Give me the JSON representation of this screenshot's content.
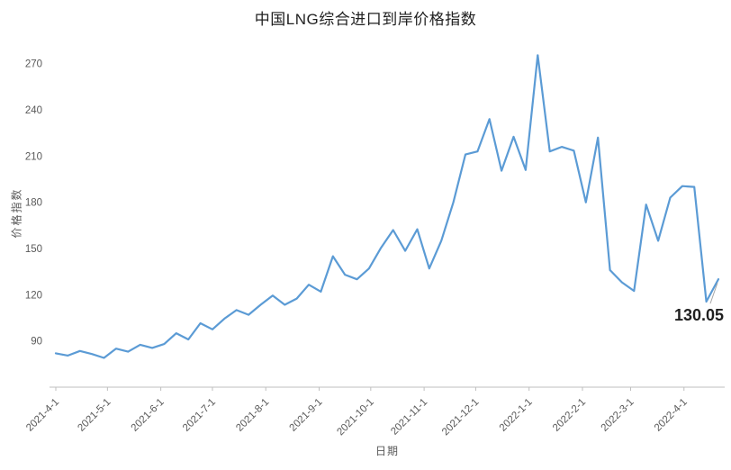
{
  "chart_data": {
    "type": "line",
    "title": "中国LNG综合进口到岸价格指数",
    "xlabel": "日期",
    "ylabel": "价格指数",
    "ylim": [
      60,
      285
    ],
    "yticks": [
      90,
      120,
      150,
      180,
      210,
      240,
      270
    ],
    "xtick_labels": [
      "2021-4-1",
      "2021-5-1",
      "2021-6-1",
      "2021-7-1",
      "2021-8-1",
      "2021-9-1",
      "2021-10-1",
      "2021-11-1",
      "2021-12-1",
      "2022-1-1",
      "2022-2-1",
      "2022-3-1",
      "2022-4-1"
    ],
    "grid": false,
    "legend": "none",
    "line_color": "#5B9BD5",
    "axis_color": "#BFBFBF",
    "tick_label_color": "#595959",
    "last_point_label": "130.05",
    "series": [
      {
        "name": "价格指数",
        "dates": [
          "2021-04-01",
          "2021-04-08",
          "2021-04-15",
          "2021-04-22",
          "2021-04-29",
          "2021-05-06",
          "2021-05-13",
          "2021-05-20",
          "2021-05-27",
          "2021-06-03",
          "2021-06-10",
          "2021-06-17",
          "2021-06-24",
          "2021-07-01",
          "2021-07-08",
          "2021-07-15",
          "2021-07-22",
          "2021-07-29",
          "2021-08-05",
          "2021-08-12",
          "2021-08-19",
          "2021-08-26",
          "2021-09-02",
          "2021-09-09",
          "2021-09-16",
          "2021-09-23",
          "2021-09-30",
          "2021-10-07",
          "2021-10-14",
          "2021-10-21",
          "2021-10-28",
          "2021-11-04",
          "2021-11-11",
          "2021-11-18",
          "2021-11-25",
          "2021-12-02",
          "2021-12-09",
          "2021-12-16",
          "2021-12-23",
          "2021-12-30",
          "2022-01-06",
          "2022-01-13",
          "2022-01-20",
          "2022-01-27",
          "2022-02-03",
          "2022-02-10",
          "2022-02-17",
          "2022-02-24",
          "2022-03-03",
          "2022-03-10",
          "2022-03-17",
          "2022-03-24",
          "2022-03-31",
          "2022-04-07",
          "2022-04-14",
          "2022-04-21"
        ],
        "values": [
          82,
          80.5,
          83.5,
          81.5,
          79,
          85,
          83,
          87.5,
          85.5,
          88,
          95,
          91,
          101.5,
          97.5,
          104.5,
          110,
          107,
          113.5,
          119.5,
          113.5,
          117.5,
          126.5,
          122,
          145,
          133,
          130,
          137,
          150.5,
          162,
          148.5,
          162.5,
          137,
          155,
          180,
          211,
          213,
          234,
          200.5,
          222.5,
          201,
          275.5,
          213,
          216,
          213.5,
          180,
          222,
          136,
          128,
          122.5,
          178.5,
          155,
          183,
          190.5,
          190,
          115.5,
          130.05
        ]
      }
    ]
  }
}
